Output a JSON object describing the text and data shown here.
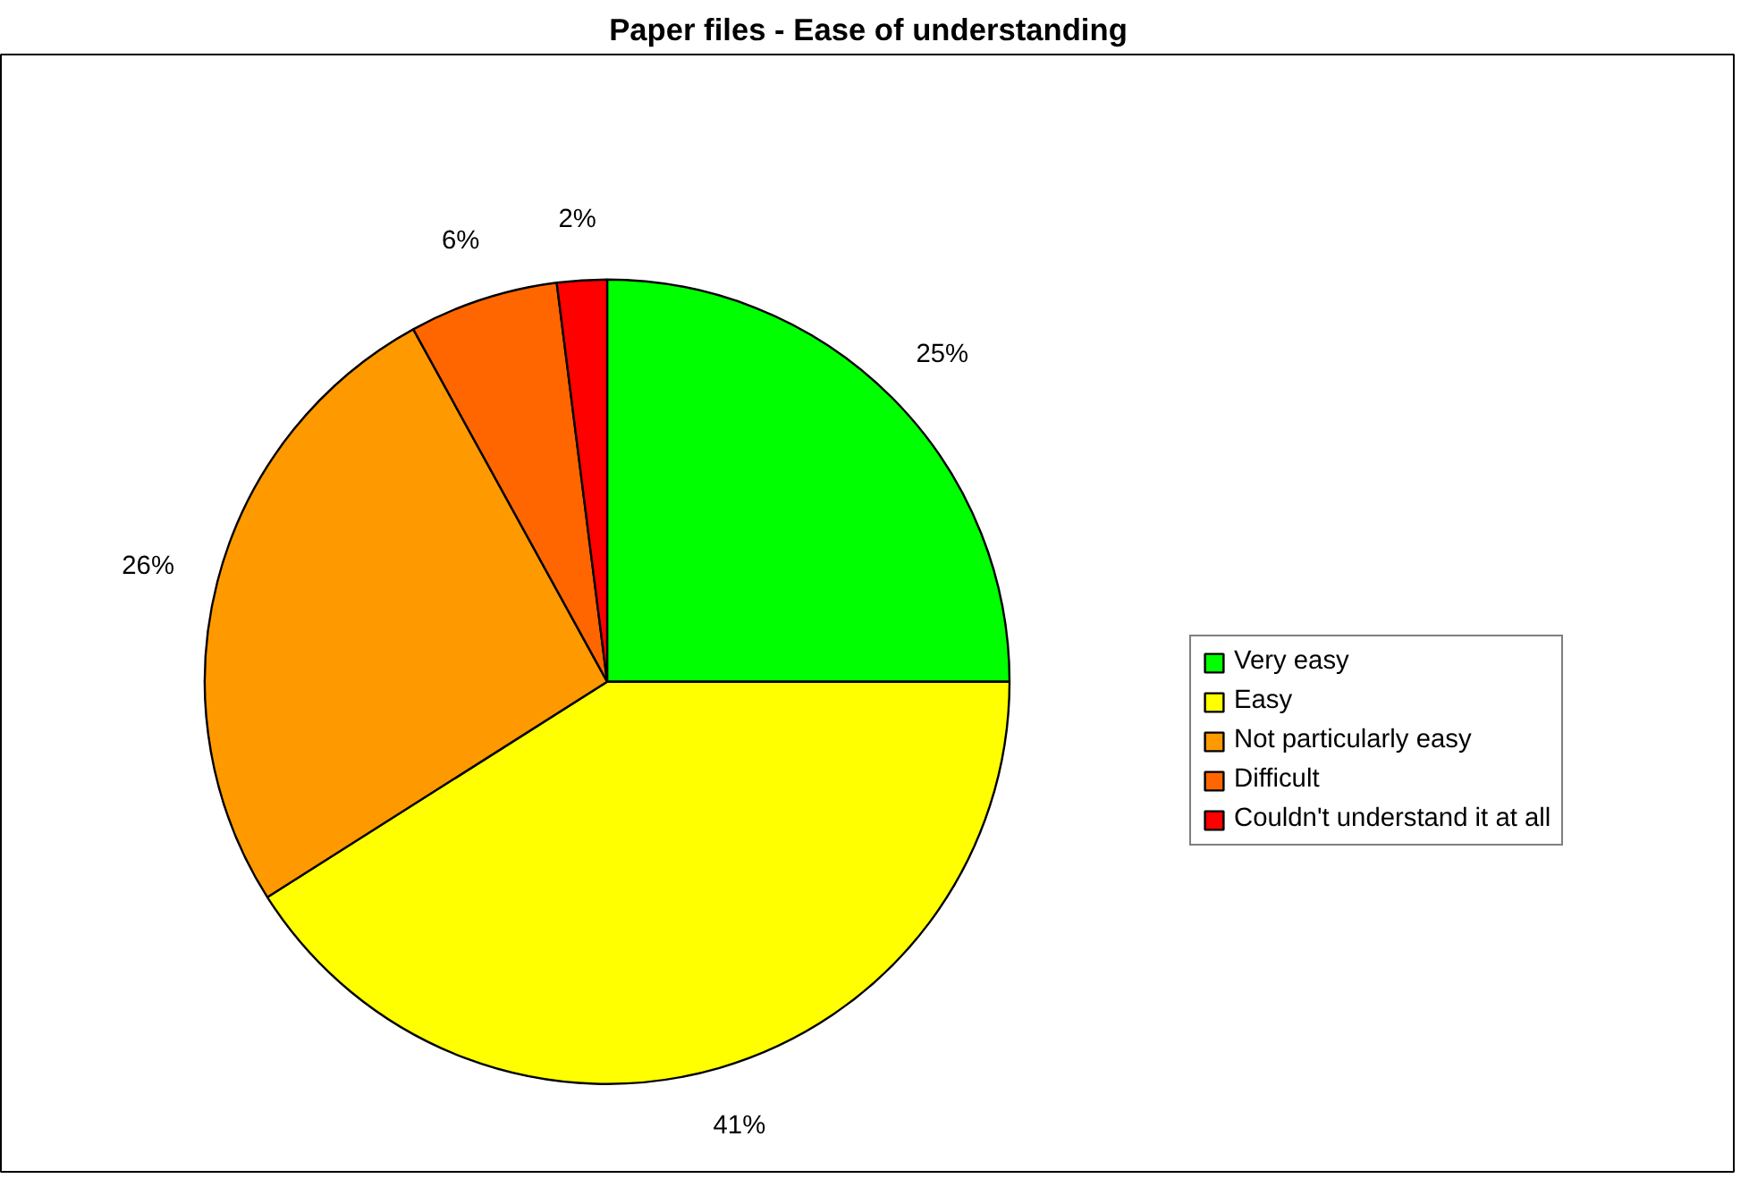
{
  "chart_data": {
    "type": "pie",
    "title": "Paper files - Ease of understanding",
    "categories": [
      "Very easy",
      "Easy",
      "Not particularly easy",
      "Difficult",
      "Couldn't understand it at all"
    ],
    "values": [
      25,
      41,
      26,
      6,
      2
    ],
    "colors": [
      "#00ff00",
      "#ffff00",
      "#ff9900",
      "#ff6600",
      "#ff0000"
    ],
    "value_labels": [
      "25%",
      "41%",
      "26%",
      "6%",
      "2%"
    ],
    "legend": "right"
  }
}
